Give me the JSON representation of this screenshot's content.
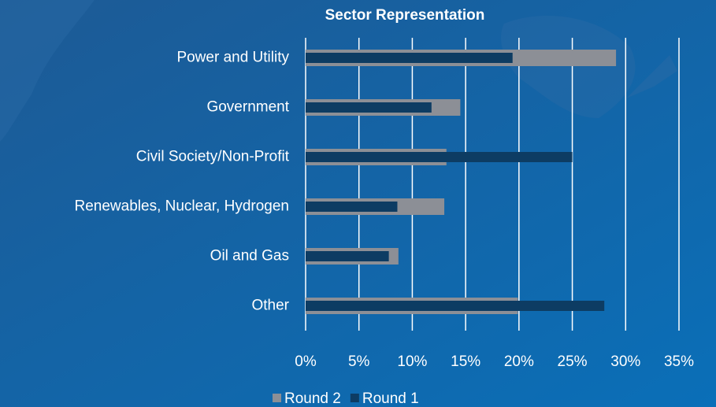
{
  "chart_data": {
    "type": "bar",
    "orientation": "horizontal",
    "overlap": true,
    "title": "Sector Representation",
    "categories": [
      "Power and Utility",
      "Government",
      "Civil Society/Non-Profit",
      "Renewables, Nuclear, Hydrogen",
      "Oil and Gas",
      "Other"
    ],
    "series": [
      {
        "name": "Round 2",
        "color": "#8c8f96",
        "values": [
          29.1,
          14.5,
          13.2,
          13.0,
          8.7,
          19.9
        ]
      },
      {
        "name": "Round 1",
        "color": "#0d3c63",
        "values": [
          19.4,
          11.8,
          25.0,
          8.6,
          7.8,
          28.0
        ]
      }
    ],
    "xlim": [
      0,
      35
    ],
    "xticks": [
      {
        "value": 0,
        "label": "0%"
      },
      {
        "value": 5,
        "label": "5%"
      },
      {
        "value": 10,
        "label": "10%"
      },
      {
        "value": 15,
        "label": "15%"
      },
      {
        "value": 20,
        "label": "20%"
      },
      {
        "value": 25,
        "label": "25%"
      },
      {
        "value": 30,
        "label": "30%"
      },
      {
        "value": 35,
        "label": "35%"
      }
    ],
    "grid": true,
    "legend": "bottom"
  }
}
